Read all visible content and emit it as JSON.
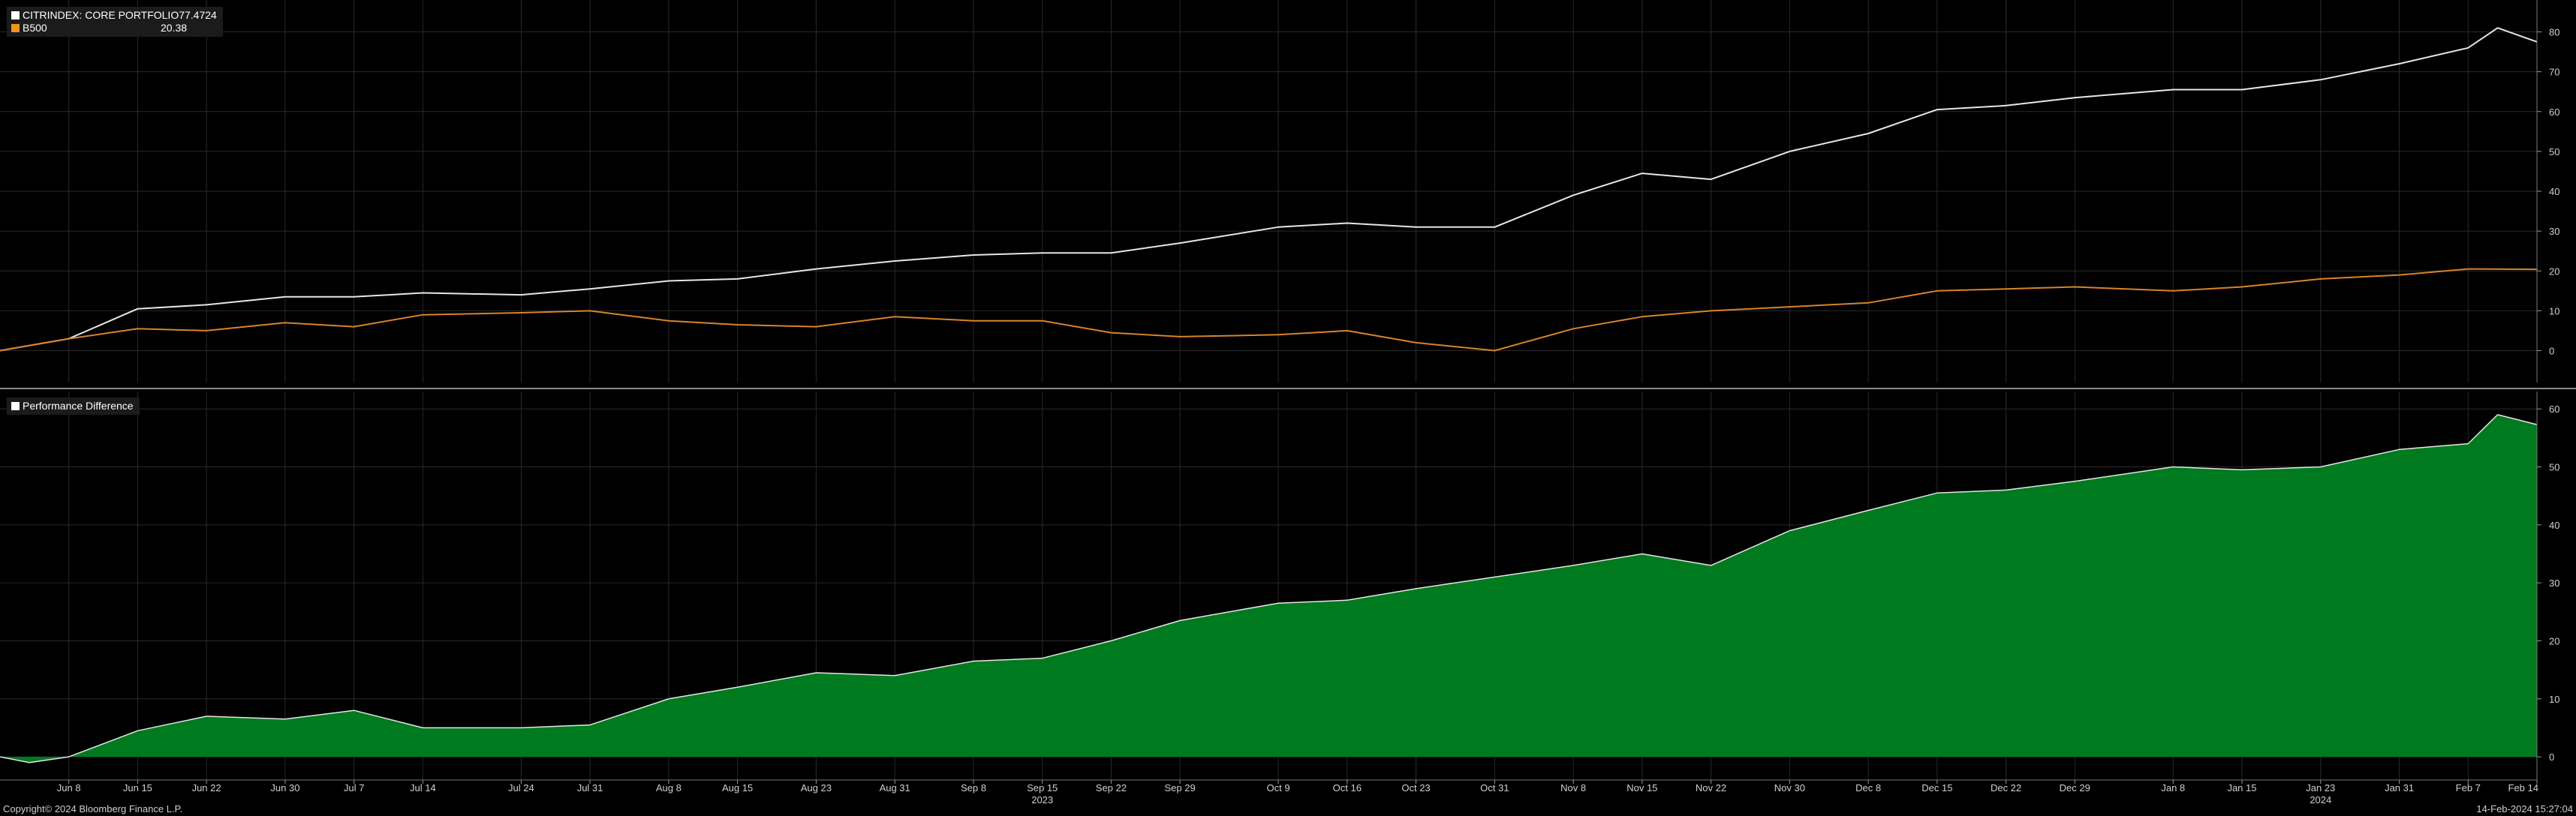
{
  "footer": {
    "copyright": "Copyright© 2024 Bloomberg Finance L.P.",
    "timestamp": "14-Feb-2024 15:27:04"
  },
  "colors": {
    "background": "#000000",
    "grid": "#2a2a2a",
    "portfolio_line": "#e6e6e6",
    "benchmark_line": "#d9822b",
    "difference_fill": "#007a1f",
    "difference_line": "#e6e6e6",
    "swatch_portfolio": "#ffffff",
    "swatch_benchmark": "#f29020",
    "swatch_difference": "#ffffff"
  },
  "legend_top": [
    {
      "name": "CITRINDEX: CORE PORTFOLIO",
      "value": "77.4724",
      "color": "#ffffff"
    },
    {
      "name": "B500",
      "value": "20.38",
      "color": "#f29020"
    }
  ],
  "legend_bottom": [
    {
      "name": "Performance Difference",
      "value": "",
      "color": "#ffffff"
    }
  ],
  "chart_data": [
    {
      "type": "line",
      "x_tick_labels": [
        "Jun 8",
        "Jun 15",
        "Jun 22",
        "Jun 30",
        "Jul 7",
        "Jul 14",
        "Jul 24",
        "Jul 31",
        "Aug 8",
        "Aug 15",
        "Aug 23",
        "Aug 31",
        "Sep 8",
        "Sep 15",
        "Sep 22",
        "Sep 29",
        "Oct 9",
        "Oct 16",
        "Oct 23",
        "Oct 31",
        "Nov 8",
        "Nov 15",
        "Nov 22",
        "Nov 30",
        "Dec 8",
        "Dec 15",
        "Dec 22",
        "Dec 29",
        "Jan 8",
        "Jan 15",
        "Jan 23",
        "Jan 31",
        "Feb 7",
        "Feb 14"
      ],
      "year_labels": [
        {
          "label": "2023",
          "at": "Sep 15"
        },
        {
          "label": "2024",
          "at": "Jan 23"
        }
      ],
      "y_ticks": [
        0,
        10,
        20,
        30,
        40,
        50,
        60,
        70,
        80
      ],
      "ylim": [
        -8,
        88
      ],
      "grid": true,
      "legend_position": "top-left",
      "series": [
        {
          "name": "CITRINDEX: CORE PORTFOLIO",
          "points": [
            [
              "Jun 1",
              0
            ],
            [
              "Jun 8",
              3
            ],
            [
              "Jun 15",
              10.5
            ],
            [
              "Jun 22",
              11.5
            ],
            [
              "Jun 30",
              13.5
            ],
            [
              "Jul 7",
              13.5
            ],
            [
              "Jul 14",
              14.5
            ],
            [
              "Jul 24",
              14
            ],
            [
              "Jul 31",
              15.5
            ],
            [
              "Aug 8",
              17.5
            ],
            [
              "Aug 15",
              18
            ],
            [
              "Aug 23",
              20.5
            ],
            [
              "Aug 31",
              22.5
            ],
            [
              "Sep 8",
              24
            ],
            [
              "Sep 15",
              24.5
            ],
            [
              "Sep 22",
              24.5
            ],
            [
              "Sep 29",
              27
            ],
            [
              "Oct 9",
              31
            ],
            [
              "Oct 16",
              32
            ],
            [
              "Oct 23",
              31
            ],
            [
              "Oct 31",
              31
            ],
            [
              "Nov 8",
              39
            ],
            [
              "Nov 15",
              44.5
            ],
            [
              "Nov 22",
              43
            ],
            [
              "Nov 30",
              50
            ],
            [
              "Dec 8",
              54.5
            ],
            [
              "Dec 15",
              60.5
            ],
            [
              "Dec 22",
              61.5
            ],
            [
              "Dec 29",
              63.5
            ],
            [
              "Jan 8",
              65.5
            ],
            [
              "Jan 15",
              65.5
            ],
            [
              "Jan 23",
              68
            ],
            [
              "Jan 31",
              72
            ],
            [
              "Feb 7",
              76
            ],
            [
              "Feb 10",
              81
            ],
            [
              "Feb 14",
              77.5
            ]
          ]
        },
        {
          "name": "B500",
          "points": [
            [
              "Jun 1",
              0
            ],
            [
              "Jun 8",
              3
            ],
            [
              "Jun 15",
              5.5
            ],
            [
              "Jun 22",
              5
            ],
            [
              "Jun 30",
              7
            ],
            [
              "Jul 7",
              6
            ],
            [
              "Jul 14",
              9
            ],
            [
              "Jul 24",
              9.5
            ],
            [
              "Jul 31",
              10
            ],
            [
              "Aug 8",
              7.5
            ],
            [
              "Aug 15",
              6.5
            ],
            [
              "Aug 23",
              6
            ],
            [
              "Aug 31",
              8.5
            ],
            [
              "Sep 8",
              7.5
            ],
            [
              "Sep 15",
              7.5
            ],
            [
              "Sep 22",
              4.5
            ],
            [
              "Sep 29",
              3.5
            ],
            [
              "Oct 9",
              4
            ],
            [
              "Oct 16",
              5
            ],
            [
              "Oct 23",
              2
            ],
            [
              "Oct 31",
              0
            ],
            [
              "Nov 8",
              5.5
            ],
            [
              "Nov 15",
              8.5
            ],
            [
              "Nov 22",
              10
            ],
            [
              "Nov 30",
              11
            ],
            [
              "Dec 8",
              12
            ],
            [
              "Dec 15",
              15
            ],
            [
              "Dec 22",
              15.5
            ],
            [
              "Dec 29",
              16
            ],
            [
              "Jan 8",
              15
            ],
            [
              "Jan 15",
              16
            ],
            [
              "Jan 23",
              18
            ],
            [
              "Jan 31",
              19
            ],
            [
              "Feb 7",
              20.5
            ],
            [
              "Feb 14",
              20.4
            ]
          ]
        }
      ]
    },
    {
      "type": "area",
      "x_tick_labels": [
        "Jun 8",
        "Jun 15",
        "Jun 22",
        "Jun 30",
        "Jul 7",
        "Jul 14",
        "Jul 24",
        "Jul 31",
        "Aug 8",
        "Aug 15",
        "Aug 23",
        "Aug 31",
        "Sep 8",
        "Sep 15",
        "Sep 22",
        "Sep 29",
        "Oct 9",
        "Oct 16",
        "Oct 23",
        "Oct 31",
        "Nov 8",
        "Nov 15",
        "Nov 22",
        "Nov 30",
        "Dec 8",
        "Dec 15",
        "Dec 22",
        "Dec 29",
        "Jan 8",
        "Jan 15",
        "Jan 23",
        "Jan 31",
        "Feb 7",
        "Feb 14"
      ],
      "y_ticks": [
        0,
        10,
        20,
        30,
        40,
        50,
        60
      ],
      "ylim": [
        -4,
        63
      ],
      "grid": true,
      "legend_position": "top-left",
      "series": [
        {
          "name": "Performance Difference",
          "points": [
            [
              "Jun 1",
              0
            ],
            [
              "Jun 4",
              -1
            ],
            [
              "Jun 8",
              0
            ],
            [
              "Jun 15",
              4.5
            ],
            [
              "Jun 22",
              7
            ],
            [
              "Jun 30",
              6.5
            ],
            [
              "Jul 7",
              8
            ],
            [
              "Jul 14",
              5
            ],
            [
              "Jul 24",
              5
            ],
            [
              "Jul 31",
              5.5
            ],
            [
              "Aug 8",
              10
            ],
            [
              "Aug 15",
              12
            ],
            [
              "Aug 23",
              14.5
            ],
            [
              "Aug 31",
              14
            ],
            [
              "Sep 8",
              16.5
            ],
            [
              "Sep 15",
              17
            ],
            [
              "Sep 22",
              20
            ],
            [
              "Sep 29",
              23.5
            ],
            [
              "Oct 9",
              26.5
            ],
            [
              "Oct 16",
              27
            ],
            [
              "Oct 23",
              29
            ],
            [
              "Oct 31",
              31
            ],
            [
              "Nov 8",
              33
            ],
            [
              "Nov 15",
              35
            ],
            [
              "Nov 22",
              33
            ],
            [
              "Nov 30",
              39
            ],
            [
              "Dec 8",
              42.5
            ],
            [
              "Dec 15",
              45.5
            ],
            [
              "Dec 22",
              46
            ],
            [
              "Dec 29",
              47.5
            ],
            [
              "Jan 8",
              50
            ],
            [
              "Jan 15",
              49.5
            ],
            [
              "Jan 23",
              50
            ],
            [
              "Jan 31",
              53
            ],
            [
              "Feb 7",
              54
            ],
            [
              "Feb 10",
              59
            ],
            [
              "Feb 14",
              57.3
            ]
          ]
        }
      ]
    }
  ]
}
